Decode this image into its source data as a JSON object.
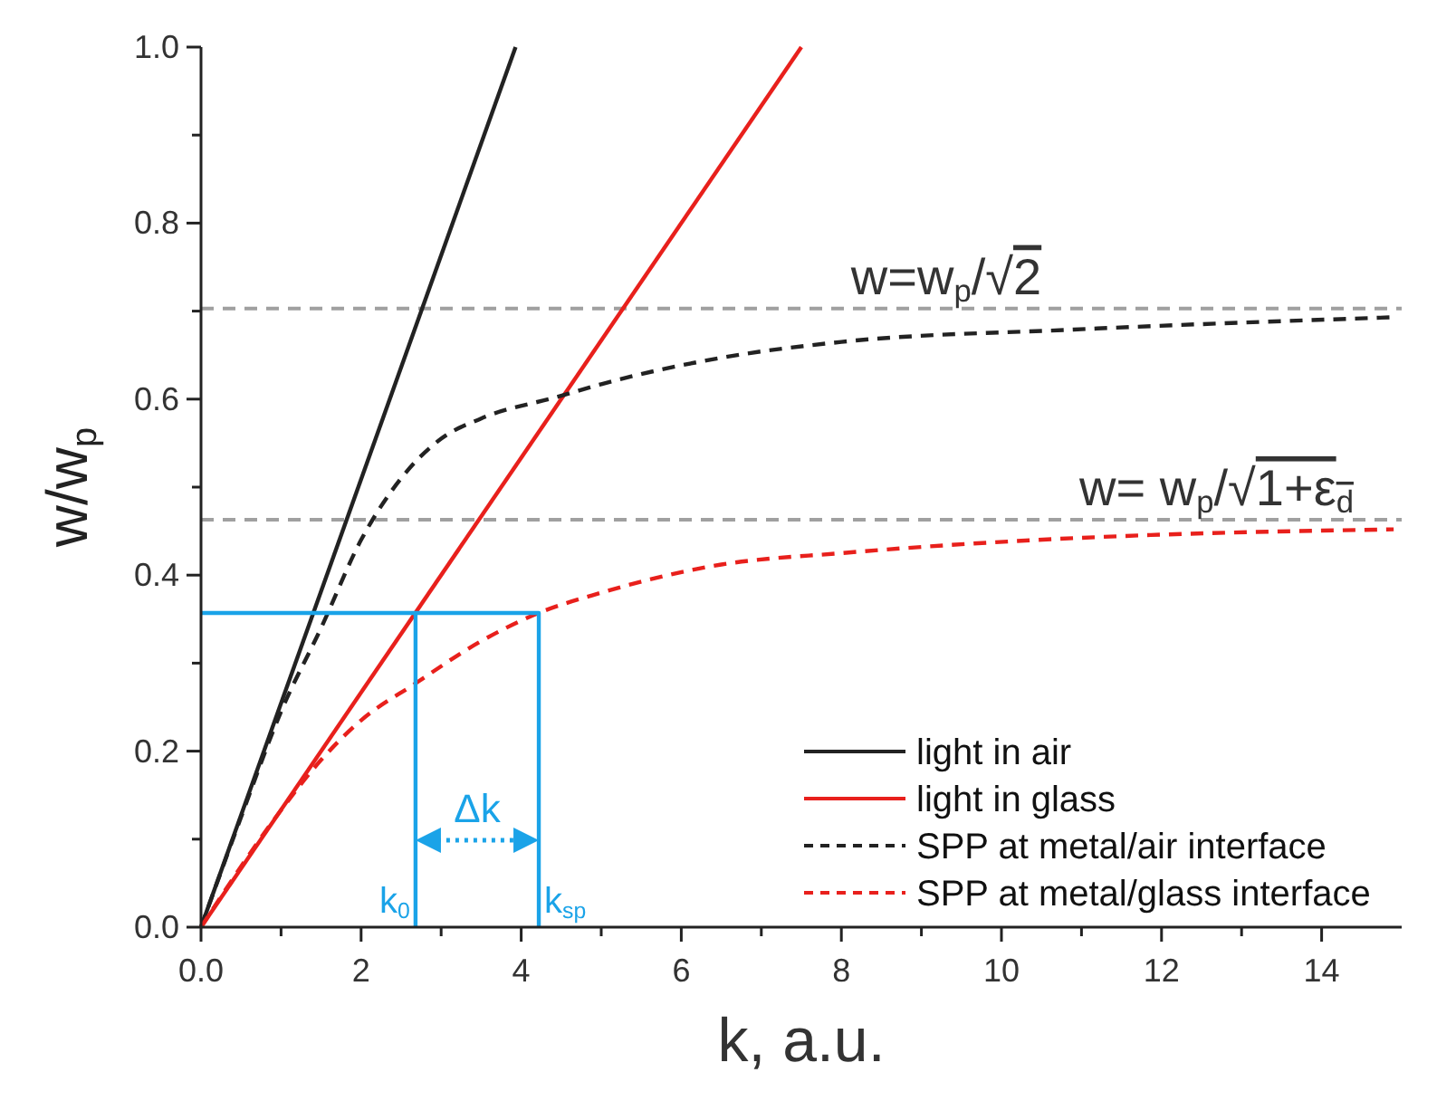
{
  "chart_data": {
    "type": "line",
    "xlabel": "k, a.u.",
    "ylabel": "w/w$_{p}$",
    "xlim": [
      0,
      15
    ],
    "xticks": [
      {
        "value": 0,
        "label": "0.0"
      },
      {
        "value": 1,
        "label": null
      },
      2,
      {
        "value": 3,
        "label": null
      },
      4,
      {
        "value": 5,
        "label": null
      },
      6,
      {
        "value": 7,
        "label": null
      },
      8,
      {
        "value": 9,
        "label": null
      },
      10,
      {
        "value": 11,
        "label": null
      },
      12,
      {
        "value": 13,
        "label": null
      },
      14
    ],
    "ylim": [
      0,
      1
    ],
    "yticks": [
      {
        "value": 0,
        "label": "0.0"
      },
      {
        "value": 0.1,
        "label": null
      },
      {
        "value": 0.2,
        "label": "0.2"
      },
      {
        "value": 0.3,
        "label": null
      },
      {
        "value": 0.4,
        "label": "0.4"
      },
      {
        "value": 0.5,
        "label": null
      },
      {
        "value": 0.6,
        "label": "0.6"
      },
      {
        "value": 0.7,
        "label": null
      },
      {
        "value": 0.8,
        "label": "0.8"
      },
      {
        "value": 0.9,
        "label": null
      },
      {
        "value": 1,
        "label": "1.0"
      }
    ],
    "grid": false,
    "legend": "bottom right",
    "marker": "none",
    "series": [
      {
        "name": "light in air",
        "color": "#222222",
        "line_style": "solid",
        "x": [
          0,
          3.93
        ],
        "values": [
          0,
          1
        ]
      },
      {
        "name": "light in glass",
        "color": "#e8201c",
        "line_style": "solid",
        "x": [
          0,
          7.5
        ],
        "values": [
          0,
          1
        ]
      },
      {
        "name": "SPP at metal/air interface",
        "color": "#222222",
        "line_style": "dashed",
        "x": [
          0,
          0.5,
          1,
          1.5,
          2,
          2.5,
          3,
          3.5,
          4.47,
          5,
          6.5,
          8,
          10.9,
          14.9
        ],
        "values": [
          0,
          0.125,
          0.245,
          0.34,
          0.44,
          0.51,
          0.555,
          0.578,
          0.603,
          0.617,
          0.647,
          0.665,
          0.679,
          0.693
        ]
      },
      {
        "name": "SPP at metal/glass interface",
        "color": "#e8201c",
        "line_style": "dashed",
        "x": [
          0,
          1,
          1.5,
          2,
          2.68,
          3.5,
          4.22,
          5,
          6.5,
          8,
          10.9,
          12,
          14.9
        ],
        "values": [
          0,
          0.133,
          0.19,
          0.235,
          0.277,
          0.325,
          0.357,
          0.38,
          0.412,
          0.425,
          0.442,
          0.446,
          0.452
        ]
      },
      {
        "color": "#1aa3e8",
        "line_style": "solid",
        "x": [
          0,
          4.22,
          4.22
        ],
        "values": [
          0.357,
          0.357,
          0
        ]
      },
      {
        "color": "#1aa3e8",
        "line_style": "solid",
        "x": [
          2.68,
          2.68
        ],
        "values": [
          0.357,
          0
        ]
      }
    ],
    "ref_lines": [
      {
        "axis": "y",
        "value": 0.703,
        "label": "w=w$_{p}$/√2",
        "color": "#a0a0a0",
        "line_style": "dashed"
      },
      {
        "axis": "y",
        "value": 0.463,
        "label": "w= w$_{p}$/√1+ε$_{d}$",
        "color": "#a0a0a0",
        "line_style": "dashed"
      }
    ],
    "annotations": [
      {
        "text": "k$_{0}$",
        "x": 2.68,
        "y": 0
      },
      {
        "text": "k$_{sp}$",
        "x": 4.22,
        "y": 0
      },
      "Δk"
    ]
  }
}
